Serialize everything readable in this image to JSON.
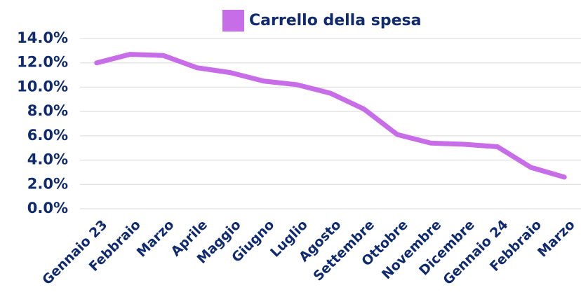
{
  "chart_data": {
    "type": "line",
    "categories": [
      "Gennaio 23",
      "Febbraio",
      "Marzo",
      "Aprile",
      "Maggio",
      "Giugno",
      "Luglio",
      "Agosto",
      "Settembre",
      "Ottobre",
      "Novembre",
      "Dicembre",
      "Gennaio 24",
      "Febbraio",
      "Marzo"
    ],
    "series": [
      {
        "name": "Carrello della spesa",
        "color": "#c86de8",
        "values": [
          12.0,
          12.7,
          12.6,
          11.6,
          11.2,
          10.5,
          10.2,
          9.5,
          8.2,
          6.1,
          5.4,
          5.3,
          5.1,
          3.4,
          2.6
        ]
      }
    ],
    "ylim": [
      0,
      14
    ],
    "yticks": [
      {
        "value": 0,
        "label": "0.0%"
      },
      {
        "value": 2,
        "label": "2.0%"
      },
      {
        "value": 4,
        "label": "4.0%"
      },
      {
        "value": 6,
        "label": "6.0%"
      },
      {
        "value": 8,
        "label": "8.0%"
      },
      {
        "value": 10,
        "label": "10.0%"
      },
      {
        "value": 12,
        "label": "12.0%"
      },
      {
        "value": 14,
        "label": "14.0%"
      }
    ],
    "grid": true,
    "legend": "top"
  }
}
